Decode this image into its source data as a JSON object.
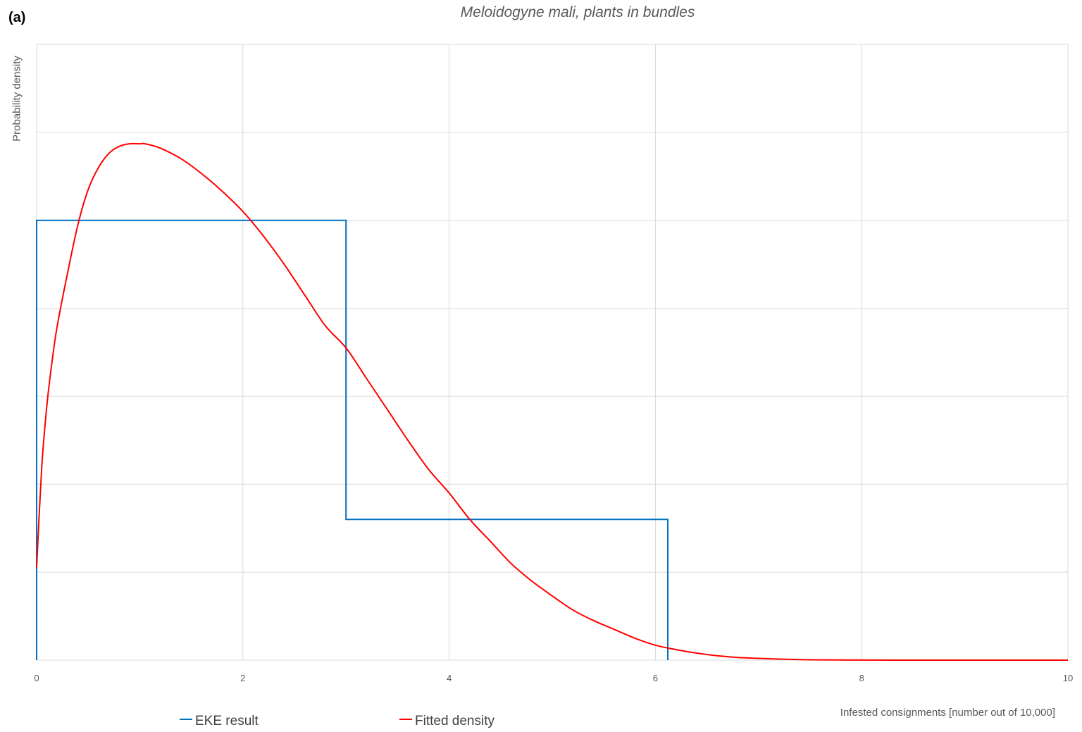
{
  "panel_label": "(a)",
  "chart_data": {
    "type": "line",
    "title": "Meloidogyne mali, plants in bundles",
    "xlabel": "Infested consignments [number out of 10,000]",
    "ylabel": "Probability density",
    "xlim": [
      0,
      10
    ],
    "x_ticks": [
      0,
      2,
      4,
      6,
      8,
      10
    ],
    "x_tick_labels": [
      "0",
      "2",
      "4",
      "6",
      "8",
      "10"
    ],
    "y_tick_labels_shown": false,
    "grid": true,
    "legend_position": "bottom-left",
    "series": [
      {
        "name": "EKE result",
        "color": "#0070C0",
        "style": "step",
        "x": [
          0,
          0,
          3.0,
          3.0,
          6.12,
          6.12
        ],
        "y": [
          0,
          5.0,
          5.0,
          1.6,
          1.6,
          0
        ]
      },
      {
        "name": "Fitted density",
        "color": "#FF0000",
        "style": "smooth",
        "x": [
          0.0,
          0.05,
          0.1,
          0.15,
          0.2,
          0.3,
          0.4,
          0.5,
          0.6,
          0.7,
          0.8,
          0.9,
          1.0,
          1.05,
          1.2,
          1.4,
          1.6,
          1.8,
          2.0,
          2.2,
          2.4,
          2.6,
          2.8,
          3.0,
          3.2,
          3.4,
          3.6,
          3.8,
          4.0,
          4.2,
          4.4,
          4.6,
          4.8,
          5.0,
          5.2,
          5.4,
          5.6,
          5.8,
          6.0,
          6.2,
          6.4,
          6.6,
          6.8,
          7.0,
          7.2,
          7.4,
          7.6,
          7.8,
          8.0,
          8.5,
          9.0,
          9.5,
          10.0
        ],
        "y": [
          1.05,
          2.2,
          2.9,
          3.4,
          3.8,
          4.4,
          4.95,
          5.35,
          5.6,
          5.76,
          5.84,
          5.87,
          5.87,
          5.87,
          5.82,
          5.7,
          5.53,
          5.33,
          5.1,
          4.82,
          4.5,
          4.15,
          3.8,
          3.55,
          3.2,
          2.85,
          2.5,
          2.17,
          1.9,
          1.6,
          1.35,
          1.1,
          0.9,
          0.73,
          0.57,
          0.45,
          0.35,
          0.25,
          0.17,
          0.12,
          0.08,
          0.05,
          0.03,
          0.02,
          0.012,
          0.006,
          0.003,
          0.0015,
          0.0005,
          0.0002,
          0.0001,
          0.0,
          0.0
        ]
      }
    ]
  }
}
